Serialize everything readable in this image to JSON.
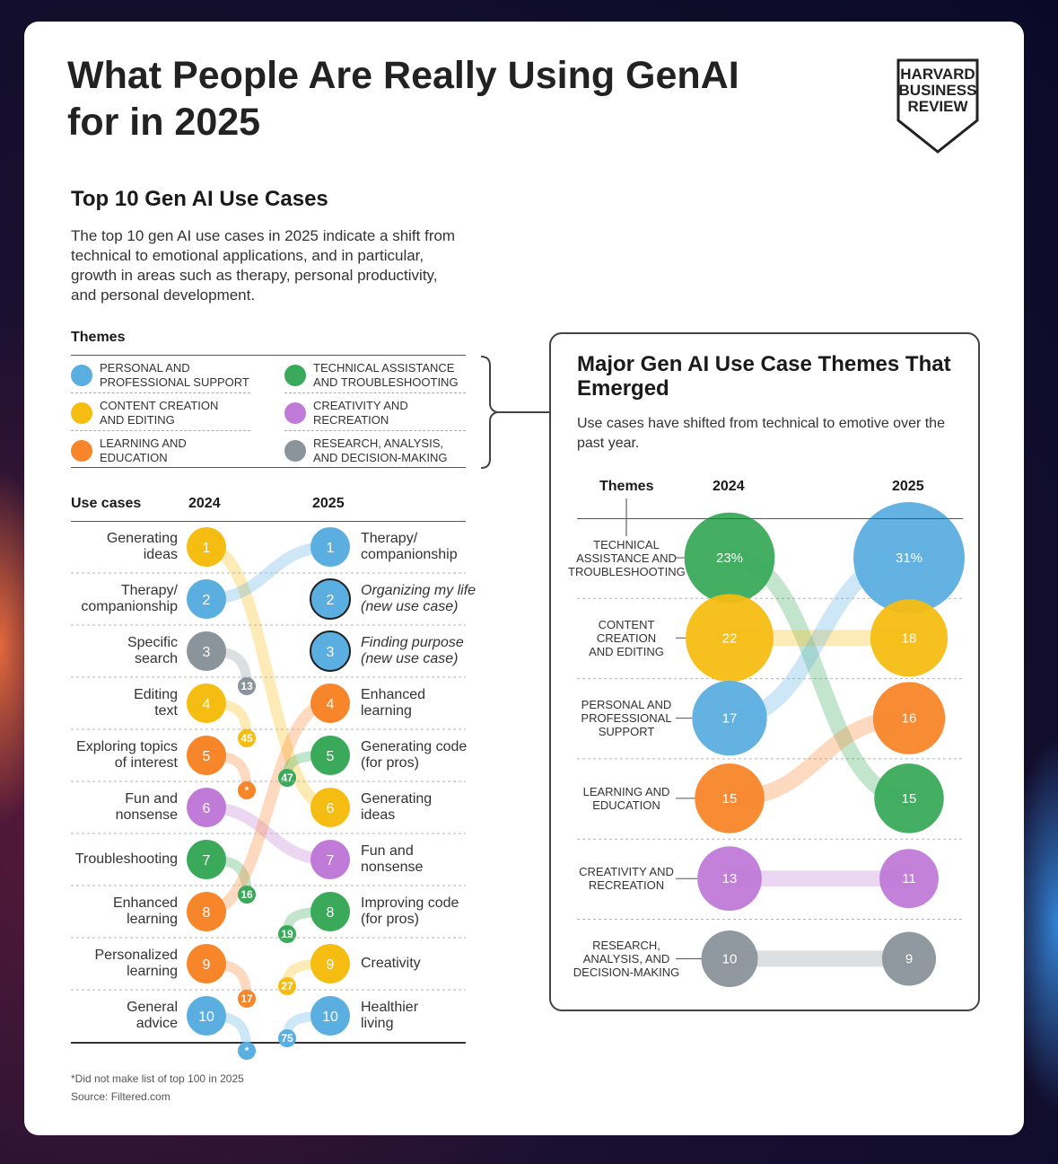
{
  "title": "What People Are Really Using GenAI for in 2025",
  "brand": {
    "line1": "HARVARD",
    "line2": "BUSINESS",
    "line3": "REVIEW"
  },
  "colors": {
    "personal": "#5baee0",
    "content": "#f5bd12",
    "learning": "#f7862a",
    "technical": "#3aaa5a",
    "creativity": "#c07ad8",
    "research": "#8a949a"
  },
  "left_section": {
    "title": "Top 10 Gen AI Use Cases",
    "description": "The top 10 gen AI use cases in 2025 indicate a shift from technical to emotional applications, and in particular, growth in areas such as therapy, personal productivity, and personal development.",
    "themes_label": "Themes",
    "legend": [
      {
        "key": "personal",
        "label_1": "PERSONAL AND",
        "label_2": "PROFESSIONAL SUPPORT"
      },
      {
        "key": "content",
        "label_1": "CONTENT CREATION",
        "label_2": "AND EDITING"
      },
      {
        "key": "learning",
        "label_1": "LEARNING AND",
        "label_2": "EDUCATION"
      },
      {
        "key": "technical",
        "label_1": "TECHNICAL ASSISTANCE",
        "label_2": "AND TROUBLESHOOTING"
      },
      {
        "key": "creativity",
        "label_1": "CREATIVITY AND",
        "label_2": "RECREATION"
      },
      {
        "key": "research",
        "label_1": "RESEARCH, ANALYSIS,",
        "label_2": "AND DECISION-MAKING"
      }
    ],
    "col_use_cases": "Use cases",
    "col_2024": "2024",
    "col_2025": "2025",
    "footnote": "*Did not make list of top 100 in 2025",
    "source": "Source: Filtered.com"
  },
  "chart_data": [
    {
      "type": "bump",
      "title": "Top 10 Gen AI Use Cases",
      "years": [
        "2024",
        "2025"
      ],
      "ranks_2024": [
        {
          "rank": 1,
          "label_1": "Generating",
          "label_2": "ideas",
          "theme": "content",
          "rank_2025": "6"
        },
        {
          "rank": 2,
          "label_1": "Therapy/",
          "label_2": "companionship",
          "theme": "personal",
          "rank_2025": "1"
        },
        {
          "rank": 3,
          "label_1": "Specific",
          "label_2": "search",
          "theme": "research",
          "rank_2025": "13"
        },
        {
          "rank": 4,
          "label_1": "Editing",
          "label_2": "text",
          "theme": "content",
          "rank_2025": "45"
        },
        {
          "rank": 5,
          "label_1": "Exploring topics",
          "label_2": "of interest",
          "theme": "learning",
          "rank_2025": "*"
        },
        {
          "rank": 6,
          "label_1": "Fun and",
          "label_2": "nonsense",
          "theme": "creativity",
          "rank_2025": "7"
        },
        {
          "rank": 7,
          "label_1": "Troubleshooting",
          "label_2": "",
          "theme": "technical",
          "rank_2025": "16"
        },
        {
          "rank": 8,
          "label_1": "Enhanced",
          "label_2": "learning",
          "theme": "learning",
          "rank_2025": "4"
        },
        {
          "rank": 9,
          "label_1": "Personalized",
          "label_2": "learning",
          "theme": "learning",
          "rank_2025": "17"
        },
        {
          "rank": 10,
          "label_1": "General",
          "label_2": "advice",
          "theme": "personal",
          "rank_2025": "*"
        }
      ],
      "ranks_2025": [
        {
          "rank": 1,
          "label_1": "Therapy/",
          "label_2": "companionship",
          "theme": "personal",
          "new": false,
          "rank_2024": "2"
        },
        {
          "rank": 2,
          "label_1": "Organizing my life",
          "label_2": "(new use case)",
          "theme": "personal",
          "new": true,
          "rank_2024": ""
        },
        {
          "rank": 3,
          "label_1": "Finding purpose",
          "label_2": "(new use case)",
          "theme": "personal",
          "new": true,
          "rank_2024": ""
        },
        {
          "rank": 4,
          "label_1": "Enhanced",
          "label_2": "learning",
          "theme": "learning",
          "new": false,
          "rank_2024": "8"
        },
        {
          "rank": 5,
          "label_1": "Generating code",
          "label_2": "(for pros)",
          "theme": "technical",
          "new": false,
          "rank_2024": "47"
        },
        {
          "rank": 6,
          "label_1": "Generating",
          "label_2": "ideas",
          "theme": "content",
          "new": false,
          "rank_2024": "1"
        },
        {
          "rank": 7,
          "label_1": "Fun and",
          "label_2": "nonsense",
          "theme": "creativity",
          "new": false,
          "rank_2024": "6"
        },
        {
          "rank": 8,
          "label_1": "Improving code",
          "label_2": "(for pros)",
          "theme": "technical",
          "new": false,
          "rank_2024": "19"
        },
        {
          "rank": 9,
          "label_1": "Creativity",
          "label_2": "",
          "theme": "content",
          "new": false,
          "rank_2024": "27"
        },
        {
          "rank": 10,
          "label_1": "Healthier",
          "label_2": "living",
          "theme": "personal",
          "new": false,
          "rank_2024": "75"
        }
      ]
    },
    {
      "type": "bump",
      "title": "Major Gen AI Use Case Themes That Emerged",
      "subtitle": "Use cases have shifted from technical to emotive over the past year.",
      "col_themes": "Themes",
      "years": [
        "2024",
        "2025"
      ],
      "themes_2024": [
        {
          "theme": "technical",
          "label": [
            "TECHNICAL",
            "ASSISTANCE AND",
            "TROUBLESHOOTING"
          ],
          "value": 23,
          "display": "23%"
        },
        {
          "theme": "content",
          "label": [
            "CONTENT",
            "CREATION",
            "AND EDITING"
          ],
          "value": 22,
          "display": "22"
        },
        {
          "theme": "personal",
          "label": [
            "PERSONAL AND",
            "PROFESSIONAL",
            "SUPPORT"
          ],
          "value": 17,
          "display": "17"
        },
        {
          "theme": "learning",
          "label": [
            "LEARNING AND",
            "EDUCATION"
          ],
          "value": 15,
          "display": "15"
        },
        {
          "theme": "creativity",
          "label": [
            "CREATIVITY AND",
            "RECREATION"
          ],
          "value": 13,
          "display": "13"
        },
        {
          "theme": "research",
          "label": [
            "RESEARCH,",
            "ANALYSIS, AND",
            "DECISION-MAKING"
          ],
          "value": 10,
          "display": "10"
        }
      ],
      "themes_2025": [
        {
          "theme": "personal",
          "value": 31,
          "display": "31%"
        },
        {
          "theme": "content",
          "value": 18,
          "display": "18"
        },
        {
          "theme": "learning",
          "value": 16,
          "display": "16"
        },
        {
          "theme": "technical",
          "value": 15,
          "display": "15"
        },
        {
          "theme": "creativity",
          "value": 11,
          "display": "11"
        },
        {
          "theme": "research",
          "value": 9,
          "display": "9"
        }
      ]
    }
  ]
}
